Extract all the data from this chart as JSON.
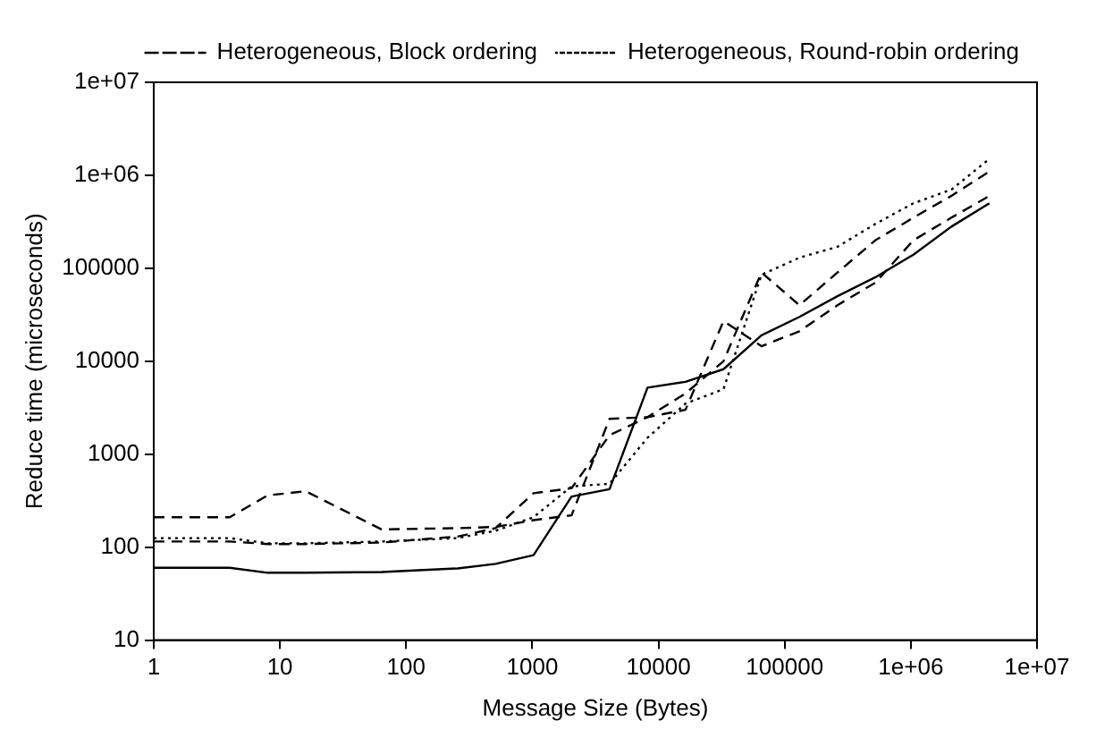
{
  "chart_data": {
    "type": "line",
    "xlabel": "Message Size (Bytes)",
    "ylabel": "Reduce time (microseconds)",
    "x": [
      1,
      4,
      8,
      16,
      64,
      256,
      512,
      1024,
      2048,
      4096,
      8192,
      16384,
      32768,
      65536,
      131072,
      262144,
      524288,
      1048576,
      2097152,
      4194304
    ],
    "series": [
      {
        "color": "#000000",
        "line_style": "solid",
        "values": [
          60,
          60,
          53,
          53,
          54,
          59,
          66,
          82,
          350,
          420,
          5200,
          6000,
          8200,
          19000,
          30000,
          50000,
          80000,
          140000,
          280000,
          500000
        ]
      },
      {
        "color": "#000000",
        "line_style": "dashed",
        "values": [
          210,
          210,
          360,
          400,
          155,
          160,
          165,
          195,
          220,
          2400,
          2500,
          3000,
          27000,
          14500,
          21000,
          40000,
          70000,
          200000,
          350000,
          600000
        ]
      },
      {
        "name": "Heterogeneous, Block ordering",
        "color": "#000000",
        "line_style": "dashed",
        "values": [
          115,
          115,
          108,
          108,
          112,
          130,
          160,
          380,
          430,
          1600,
          2500,
          4500,
          10000,
          90000,
          40000,
          90000,
          200000,
          350000,
          600000,
          1100000
        ]
      },
      {
        "name": "Heterogeneous, Round-robin ordering",
        "color": "#000000",
        "line_style": "dotted",
        "values": [
          125,
          125,
          110,
          110,
          115,
          125,
          150,
          210,
          450,
          480,
          1500,
          3500,
          5000,
          85000,
          130000,
          170000,
          300000,
          500000,
          700000,
          1500000
        ]
      }
    ],
    "log": "xy",
    "xlim": [
      1,
      10000000
    ],
    "ylim": [
      10,
      10000000
    ],
    "xticks": [
      1,
      10,
      100,
      1000,
      10000,
      100000,
      {
        "value": 1000000,
        "label": "1e+06"
      },
      {
        "value": 10000000,
        "label": "1e+07"
      }
    ],
    "yticks": [
      10,
      100,
      1000,
      10000,
      100000,
      {
        "value": 1000000,
        "label": "1e+06"
      },
      {
        "value": 10000000,
        "label": "1e+07"
      }
    ],
    "grid": false,
    "legend": "top right",
    "marker": "none"
  }
}
